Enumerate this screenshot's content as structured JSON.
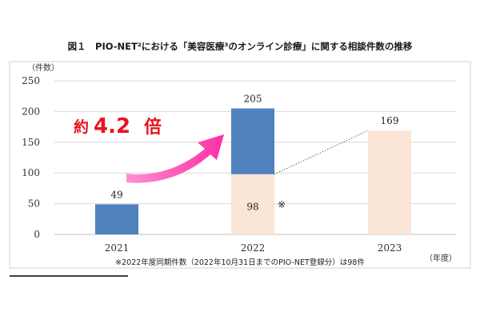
{
  "chart_data": {
    "type": "bar",
    "title": "図１　PIO-NET²における「美容医療³のオンライン診療」に関する相談件数の推移",
    "y_unit": "（件数）",
    "x_unit": "（年度）",
    "ylim": [
      0,
      250
    ],
    "y_ticks": [
      "0",
      "50",
      "100",
      "150",
      "200",
      "250"
    ],
    "grid": true,
    "categories": [
      "2021",
      "2022",
      "2023"
    ],
    "values": [
      49,
      205,
      169
    ],
    "value_labels": [
      "49",
      "205",
      "169"
    ],
    "series": [
      {
        "name": "",
        "values": [
          49,
          205,
          null
        ],
        "color": "#4f81bd"
      },
      {
        "name": "",
        "values": [
          null,
          98,
          169
        ],
        "color": "#fbe5d6"
      }
    ],
    "same_period_2022": {
      "value": 98,
      "label": "98",
      "mark": "※"
    },
    "callout": {
      "text_a": "約",
      "text_b": "4.2",
      "text_c": "倍",
      "color": "#e8141e",
      "arrow_color": "#ff3fae"
    },
    "footnote": "※2022年度同期件数（2022年10月31日までのPIO-NET登録分）は98件",
    "colors": {
      "blue": "#4f81bd",
      "peach": "#fbe5d6",
      "grid": "#d9d9d9",
      "axis": "#bfbfbf"
    }
  }
}
